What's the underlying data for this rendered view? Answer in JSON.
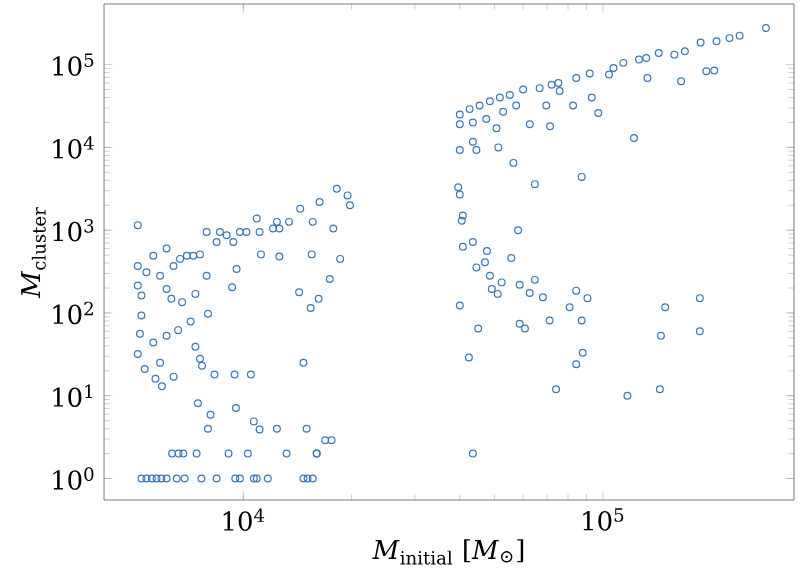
{
  "chart_data": {
    "type": "scatter",
    "xlabel": "*M*$_{initial}$ [*M*$_{⊙}$]",
    "ylabel": "*M*$_{cluster}$",
    "log": "xy",
    "grid": false,
    "marker": "circle",
    "xlim": [
      4100,
      340000
    ],
    "ylim": [
      0.55,
      540000
    ],
    "xticks": [
      {
        "value": 10000,
        "label": "10$^{4}$"
      },
      {
        "value": 100000,
        "label": "10$^{5}$"
      }
    ],
    "yticks": [
      {
        "value": 1,
        "label": "10$^{0}$"
      },
      {
        "value": 10,
        "label": "10$^{1}$"
      },
      {
        "value": 100,
        "label": "10$^{2}$"
      },
      {
        "value": 1000,
        "label": "10$^{3}$"
      },
      {
        "value": 10000,
        "label": "10$^{4}$"
      },
      {
        "value": 100000,
        "label": "10$^{5}$"
      }
    ],
    "series": [
      {
        "color": "#3a78b5",
        "x": [
          5090,
          5090,
          5090,
          5210,
          5210,
          5160,
          5090,
          5320,
          5700,
          5940,
          5620,
          5870,
          6120,
          6400,
          6590,
          5620,
          6120,
          6670,
          7260,
          7910,
          8610,
          9380,
          10200,
          11100,
          10900,
          12400,
          12600,
          14400,
          16300,
          18200,
          19500,
          19800,
          17800,
          18600,
          17400,
          15500,
          14300,
          16200,
          15400,
          14700,
          12600,
          11200,
          9580,
          9310,
          7910,
          7360,
          6760,
          6310,
          7980,
          7140,
          7360,
          7580,
          7680,
          8320,
          9460,
          10500,
          7480,
          8110,
          7980,
          9540,
          10700,
          11100,
          12400,
          15000,
          16900,
          17600,
          16000,
          5380,
          5870,
          6400,
          6970,
          7580,
          8430,
          8990,
          9790,
          12100,
          13400,
          15600,
          6120,
          6340,
          6610,
          6810,
          7420,
          9100,
          10300,
          13200,
          16000,
          5210,
          5380,
          5570,
          5740,
          5920,
          6120,
          6530,
          6870,
          7650,
          8430,
          9500,
          9790,
          10700,
          10900,
          11700,
          14700,
          15100,
          15600,
          284000,
          240000,
          225000,
          207000,
          187000,
          169000,
          158000,
          143000,
          132000,
          126000,
          114000,
          107000,
          104000,
          91900,
          84300,
          75200,
          72000,
          75800,
          66700,
          60000,
          55100,
          51700,
          48500,
          45400,
          42600,
          40000,
          40000,
          43500,
          47400,
          52800,
          57400,
          69600,
          82600,
          93100,
          97100,
          71300,
          62600,
          50600,
          194000,
          204000,
          165000,
          133000,
          122000,
          43500,
          40000,
          44500,
          51200,
          56400,
          64700,
          87300,
          39600,
          40000,
          40800,
          40500,
          58100,
          40800,
          43500,
          55600,
          47600,
          44500,
          47000,
          48500,
          49100,
          51000,
          52300,
          58700,
          62600,
          64700,
          68100,
          80800,
          84300,
          90600,
          87300,
          71100,
          58700,
          60700,
          40000,
          45000,
          42400,
          87900,
          84300,
          74100,
          117000,
          144000,
          145000,
          149000,
          186000,
          186000,
          43500
        ],
        "values": [
          1150,
          370,
          214,
          162,
          93,
          56,
          32,
          21,
          16,
          13,
          44,
          25,
          53,
          17,
          62,
          490,
          600,
          450,
          490,
          950,
          950,
          720,
          950,
          950,
          1380,
          1260,
          1050,
          1820,
          2190,
          3160,
          2630,
          2000,
          1050,
          450,
          257,
          510,
          178,
          148,
          115,
          25,
          480,
          510,
          340,
          204,
          282,
          170,
          135,
          148,
          98,
          79,
          39,
          28,
          23,
          18,
          18,
          18,
          8.1,
          5.9,
          4.0,
          7.1,
          4.9,
          3.9,
          4.0,
          4.0,
          2.9,
          2.9,
          2,
          310,
          282,
          370,
          490,
          510,
          720,
          870,
          950,
          1050,
          1260,
          1260,
          195,
          2,
          2,
          2,
          2,
          2,
          2,
          2,
          2,
          1,
          1,
          1,
          1,
          1,
          1,
          1,
          1,
          1,
          1,
          1,
          1,
          1,
          1,
          1,
          1,
          1,
          1,
          277000,
          224000,
          209000,
          191000,
          185000,
          145000,
          132000,
          138000,
          120000,
          115000,
          105000,
          91000,
          76000,
          78000,
          69000,
          60000,
          57000,
          48000,
          52000,
          50000,
          43000,
          40000,
          36000,
          32000,
          29000,
          25000,
          19000,
          20000,
          22000,
          27000,
          32000,
          32000,
          32000,
          40000,
          26000,
          18000,
          19000,
          17000,
          83000,
          85000,
          63000,
          69000,
          13000,
          11700,
          9300,
          9300,
          10000,
          6500,
          3600,
          4400,
          3300,
          2700,
          1500,
          1300,
          1000,
          630,
          720,
          460,
          560,
          355,
          410,
          282,
          195,
          170,
          234,
          219,
          174,
          251,
          155,
          117,
          186,
          151,
          81,
          81,
          74,
          65,
          123,
          65,
          29,
          33,
          24,
          12,
          10,
          12,
          53,
          117,
          151,
          60,
          2.0
        ]
      }
    ]
  }
}
